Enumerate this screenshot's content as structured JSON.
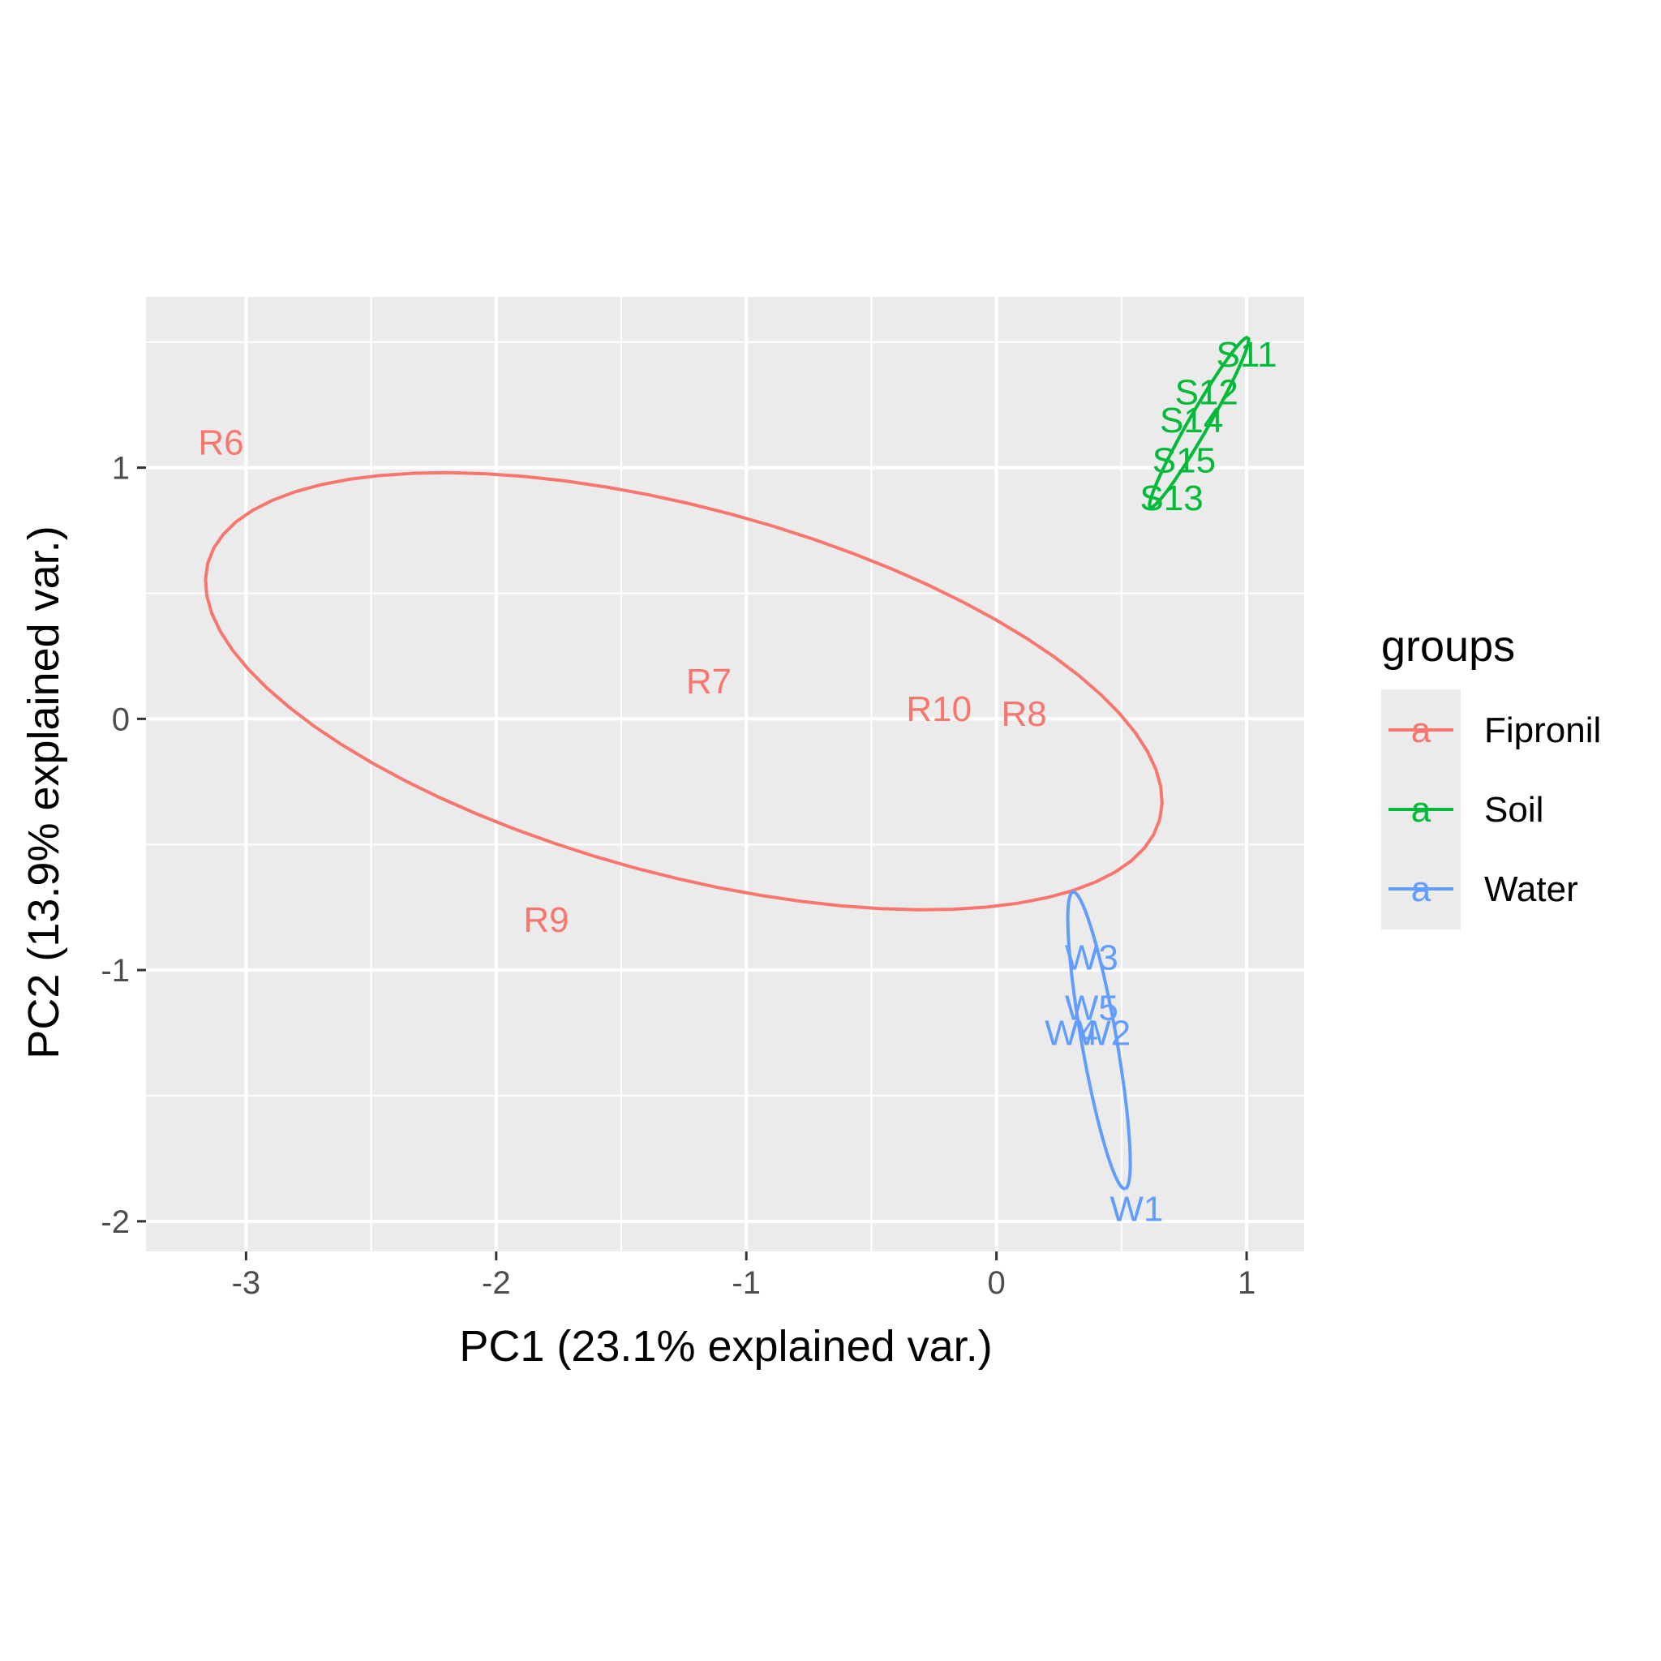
{
  "chart_data": {
    "type": "scatter",
    "title": "",
    "xlabel": "PC1 (23.1% explained var.)",
    "ylabel": "PC2 (13.9% explained var.)",
    "xlim": [
      -3.4,
      1.23
    ],
    "ylim": [
      -2.12,
      1.68
    ],
    "x_ticks": [
      -3,
      -2,
      -1,
      0,
      1
    ],
    "x_tick_labels": [
      "-3",
      "-2",
      "-1",
      "0",
      "1"
    ],
    "y_ticks": [
      -2,
      -1,
      0,
      1
    ],
    "y_tick_labels": [
      "-2",
      "-1",
      "0",
      "1"
    ],
    "grid": true,
    "panel_background": "#ebebeb",
    "legend": {
      "title": "groups",
      "position": "right",
      "entries": [
        {
          "name": "Fipronil",
          "color": "#f8766d",
          "glyph": "a"
        },
        {
          "name": "Soil",
          "color": "#00ba38",
          "glyph": "a"
        },
        {
          "name": "Water",
          "color": "#619cff",
          "glyph": "a"
        }
      ]
    },
    "series": [
      {
        "name": "Fipronil",
        "color": "#f8766d",
        "points": [
          {
            "label": "R6",
            "x": -3.1,
            "y": 1.1
          },
          {
            "label": "R7",
            "x": -1.15,
            "y": 0.15
          },
          {
            "label": "R10",
            "x": -0.23,
            "y": 0.04
          },
          {
            "label": "R8",
            "x": 0.11,
            "y": 0.02
          },
          {
            "label": "R9",
            "x": -1.8,
            "y": -0.8
          }
        ],
        "ellipse": {
          "cx": -1.25,
          "cy": 0.11,
          "rx": 1.97,
          "ry": 0.73,
          "angle_deg": -15
        }
      },
      {
        "name": "Soil",
        "color": "#00ba38",
        "points": [
          {
            "label": "S11",
            "x": 1.0,
            "y": 1.45
          },
          {
            "label": "S12",
            "x": 0.84,
            "y": 1.3
          },
          {
            "label": "S14",
            "x": 0.78,
            "y": 1.19
          },
          {
            "label": "S15",
            "x": 0.75,
            "y": 1.03
          },
          {
            "label": "S13",
            "x": 0.7,
            "y": 0.88
          }
        ],
        "ellipse": {
          "cx": 0.81,
          "cy": 1.18,
          "rx": 0.39,
          "ry": 0.04,
          "angle_deg": 60
        }
      },
      {
        "name": "Water",
        "color": "#619cff",
        "points": [
          {
            "label": "W3",
            "x": 0.38,
            "y": -0.95
          },
          {
            "label": "W5",
            "x": 0.38,
            "y": -1.15
          },
          {
            "label": "W4",
            "x": 0.3,
            "y": -1.25
          },
          {
            "label": "W2",
            "x": 0.43,
            "y": -1.25
          },
          {
            "label": "W1",
            "x": 0.56,
            "y": -1.95
          }
        ],
        "ellipse": {
          "cx": 0.41,
          "cy": -1.28,
          "rx": 0.6,
          "ry": 0.07,
          "angle_deg": -80
        }
      }
    ]
  }
}
